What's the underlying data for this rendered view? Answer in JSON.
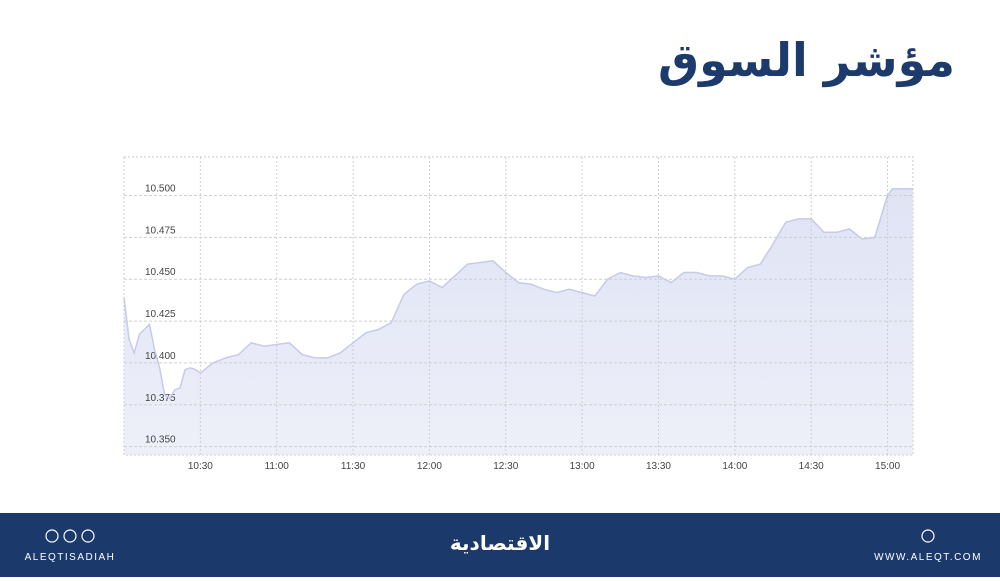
{
  "header": {
    "title": "مؤشر السوق"
  },
  "chart_data": {
    "type": "area",
    "x": [
      "10:00",
      "10:02",
      "10:04",
      "10:06",
      "10:08",
      "10:10",
      "10:12",
      "10:14",
      "10:16",
      "10:18",
      "10:20",
      "10:22",
      "10:24",
      "10:26",
      "10:28",
      "10:30",
      "10:35",
      "10:40",
      "10:45",
      "10:50",
      "10:55",
      "11:00",
      "11:05",
      "11:10",
      "11:15",
      "11:20",
      "11:25",
      "11:30",
      "11:35",
      "11:40",
      "11:45",
      "11:50",
      "11:55",
      "12:00",
      "12:05",
      "12:10",
      "12:15",
      "12:20",
      "12:25",
      "12:30",
      "12:35",
      "12:40",
      "12:45",
      "12:50",
      "12:55",
      "13:00",
      "13:05",
      "13:10",
      "13:15",
      "13:20",
      "13:25",
      "13:30",
      "13:35",
      "13:40",
      "13:45",
      "13:50",
      "13:55",
      "14:00",
      "14:05",
      "14:10",
      "14:15",
      "14:20",
      "14:25",
      "14:30",
      "14:35",
      "14:40",
      "14:45",
      "14:50",
      "14:55",
      "15:00",
      "15:02",
      "15:10"
    ],
    "values": [
      10.439,
      10.414,
      10.406,
      10.417,
      10.42,
      10.423,
      10.408,
      10.397,
      10.381,
      10.379,
      10.384,
      10.385,
      10.396,
      10.397,
      10.396,
      10.394,
      10.4,
      10.403,
      10.405,
      10.412,
      10.41,
      10.411,
      10.412,
      10.405,
      10.403,
      10.403,
      10.406,
      10.412,
      10.418,
      10.42,
      10.424,
      10.441,
      10.447,
      10.449,
      10.445,
      10.452,
      10.459,
      10.46,
      10.461,
      10.454,
      10.448,
      10.447,
      10.444,
      10.442,
      10.444,
      10.442,
      10.44,
      10.45,
      10.454,
      10.452,
      10.451,
      10.452,
      10.448,
      10.454,
      10.454,
      10.452,
      10.452,
      10.45,
      10.457,
      10.459,
      10.471,
      10.484,
      10.486,
      10.486,
      10.478,
      10.478,
      10.48,
      10.474,
      10.475,
      10.5,
      10.504,
      10.504
    ],
    "color": "#c5cbe9",
    "fill": "#dfe3f4",
    "xlim": [
      "10:00",
      "15:10"
    ],
    "xticks": [
      "10:30",
      "11:00",
      "11:30",
      "12:00",
      "12:30",
      "13:00",
      "13:30",
      "14:00",
      "14:30",
      "15:00"
    ],
    "ylim": [
      10.345,
      10.523
    ],
    "yticks": [
      {
        "value": 10.35,
        "label": "10.350"
      },
      10.375,
      {
        "value": 10.4,
        "label": "10.400"
      },
      10.425,
      {
        "value": 10.45,
        "label": "10.450"
      },
      10.475,
      {
        "value": 10.5,
        "label": "10.500"
      }
    ],
    "grid": true
  },
  "footer": {
    "handle": "ALEQTISADIAH",
    "logo": "الاقتصادية",
    "website": "WWW.ALEQT.COM"
  }
}
